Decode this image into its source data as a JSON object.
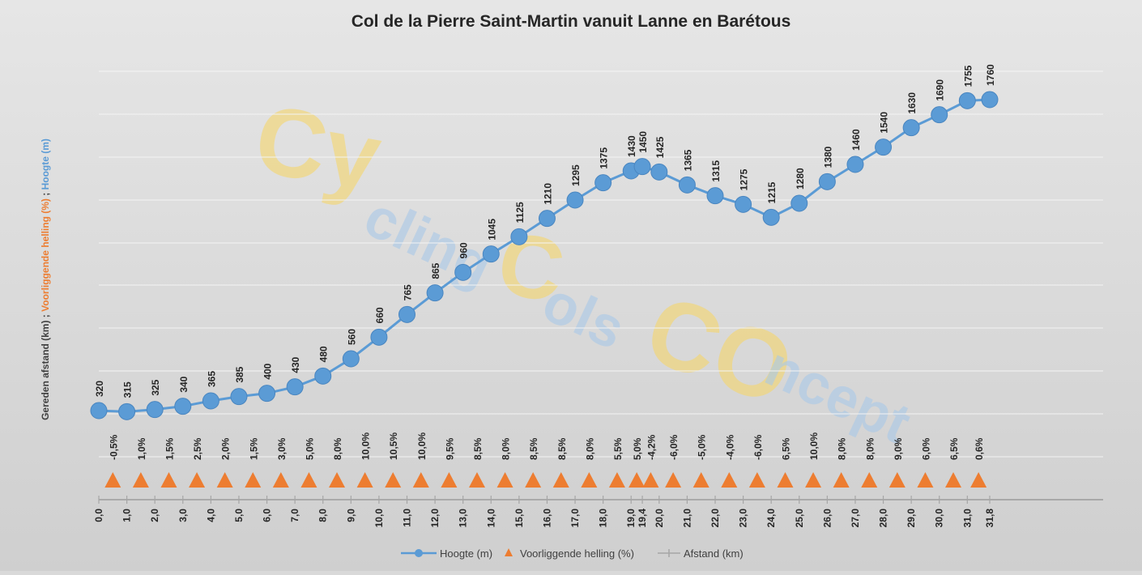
{
  "chart_data": {
    "type": "line",
    "title": "Col de la Pierre Saint-Martin vanuit Lanne en Barétous",
    "watermark": {
      "line1": "Cy",
      "line2": "cling",
      "line3": "C",
      "line4": "ols",
      "line5": "CO",
      "line6": "ncept"
    },
    "ylabel_parts": [
      {
        "text": "Gereden afstand (km)  ;  ",
        "color": "#404040"
      },
      {
        "text": "Voorliggende helling (%)",
        "color": "#ed7d31"
      },
      {
        "text": "  ;  ",
        "color": "#404040"
      },
      {
        "text": "Hoogte (m)",
        "color": "#5b9bd5"
      }
    ],
    "x_tick_labels": [
      "0,0",
      "1,0",
      "2,0",
      "3,0",
      "4,0",
      "5,0",
      "6,0",
      "7,0",
      "8,0",
      "9,0",
      "10,0",
      "11,0",
      "12,0",
      "13,0",
      "14,0",
      "15,0",
      "16,0",
      "17,0",
      "18,0",
      "19,0",
      "19,4",
      "20,0",
      "21,0",
      "22,0",
      "23,0",
      "24,0",
      "25,0",
      "26,0",
      "27,0",
      "28,0",
      "29,0",
      "30,0",
      "31,0",
      "31,8"
    ],
    "hoogte": {
      "name": "Hoogte (m)",
      "color": "#5b9bd5",
      "x": [
        0,
        1,
        2,
        3,
        4,
        5,
        6,
        7,
        8,
        9,
        10,
        11,
        12,
        13,
        14,
        15,
        16,
        17,
        18,
        19,
        19.4,
        20,
        21,
        22,
        23,
        24,
        25,
        26,
        27,
        28,
        29,
        30,
        31,
        31.8
      ],
      "values": [
        320,
        315,
        325,
        340,
        365,
        385,
        400,
        430,
        480,
        560,
        660,
        765,
        865,
        960,
        1045,
        1125,
        1210,
        1295,
        1375,
        1430,
        1450,
        1425,
        1365,
        1315,
        1275,
        1215,
        1280,
        1380,
        1460,
        1540,
        1630,
        1690,
        1755,
        1760
      ]
    },
    "helling": {
      "name": "Voorliggende helling (%)",
      "color": "#ed7d31",
      "x": [
        0.5,
        1.5,
        2.5,
        3.5,
        4.5,
        5.5,
        6.5,
        7.5,
        8.5,
        9.5,
        10.5,
        11.5,
        12.5,
        13.5,
        14.5,
        15.5,
        16.5,
        17.5,
        18.5,
        19.2,
        19.7,
        20.5,
        21.5,
        22.5,
        23.5,
        24.5,
        25.5,
        26.5,
        27.5,
        28.5,
        29.5,
        30.5,
        31.4
      ],
      "labels": [
        "-0,5%",
        "1,0%",
        "1,5%",
        "2,5%",
        "2,0%",
        "1,5%",
        "3,0%",
        "5,0%",
        "8,0%",
        "10,0%",
        "10,5%",
        "10,0%",
        "9,5%",
        "8,5%",
        "8,0%",
        "8,5%",
        "8,5%",
        "8,0%",
        "5,5%",
        "5,0%",
        "-4,2%",
        "-6,0%",
        "-5,0%",
        "-4,0%",
        "-6,0%",
        "6,5%",
        "10,0%",
        "8,0%",
        "8,0%",
        "9,0%",
        "6,0%",
        "6,5%",
        "0,6%"
      ]
    },
    "afstand": {
      "name": "Afstand (km)",
      "color": "#a6a6a6"
    },
    "legend": [
      {
        "label": "Hoogte (m)",
        "marker": "line-circle",
        "color": "#5b9bd5"
      },
      {
        "label": "Voorliggende helling (%)",
        "marker": "triangle",
        "color": "#ed7d31"
      },
      {
        "label": "Afstand (km)",
        "marker": "line-plus",
        "color": "#a6a6a6"
      }
    ],
    "legend_position": "bottom",
    "grid": true
  }
}
